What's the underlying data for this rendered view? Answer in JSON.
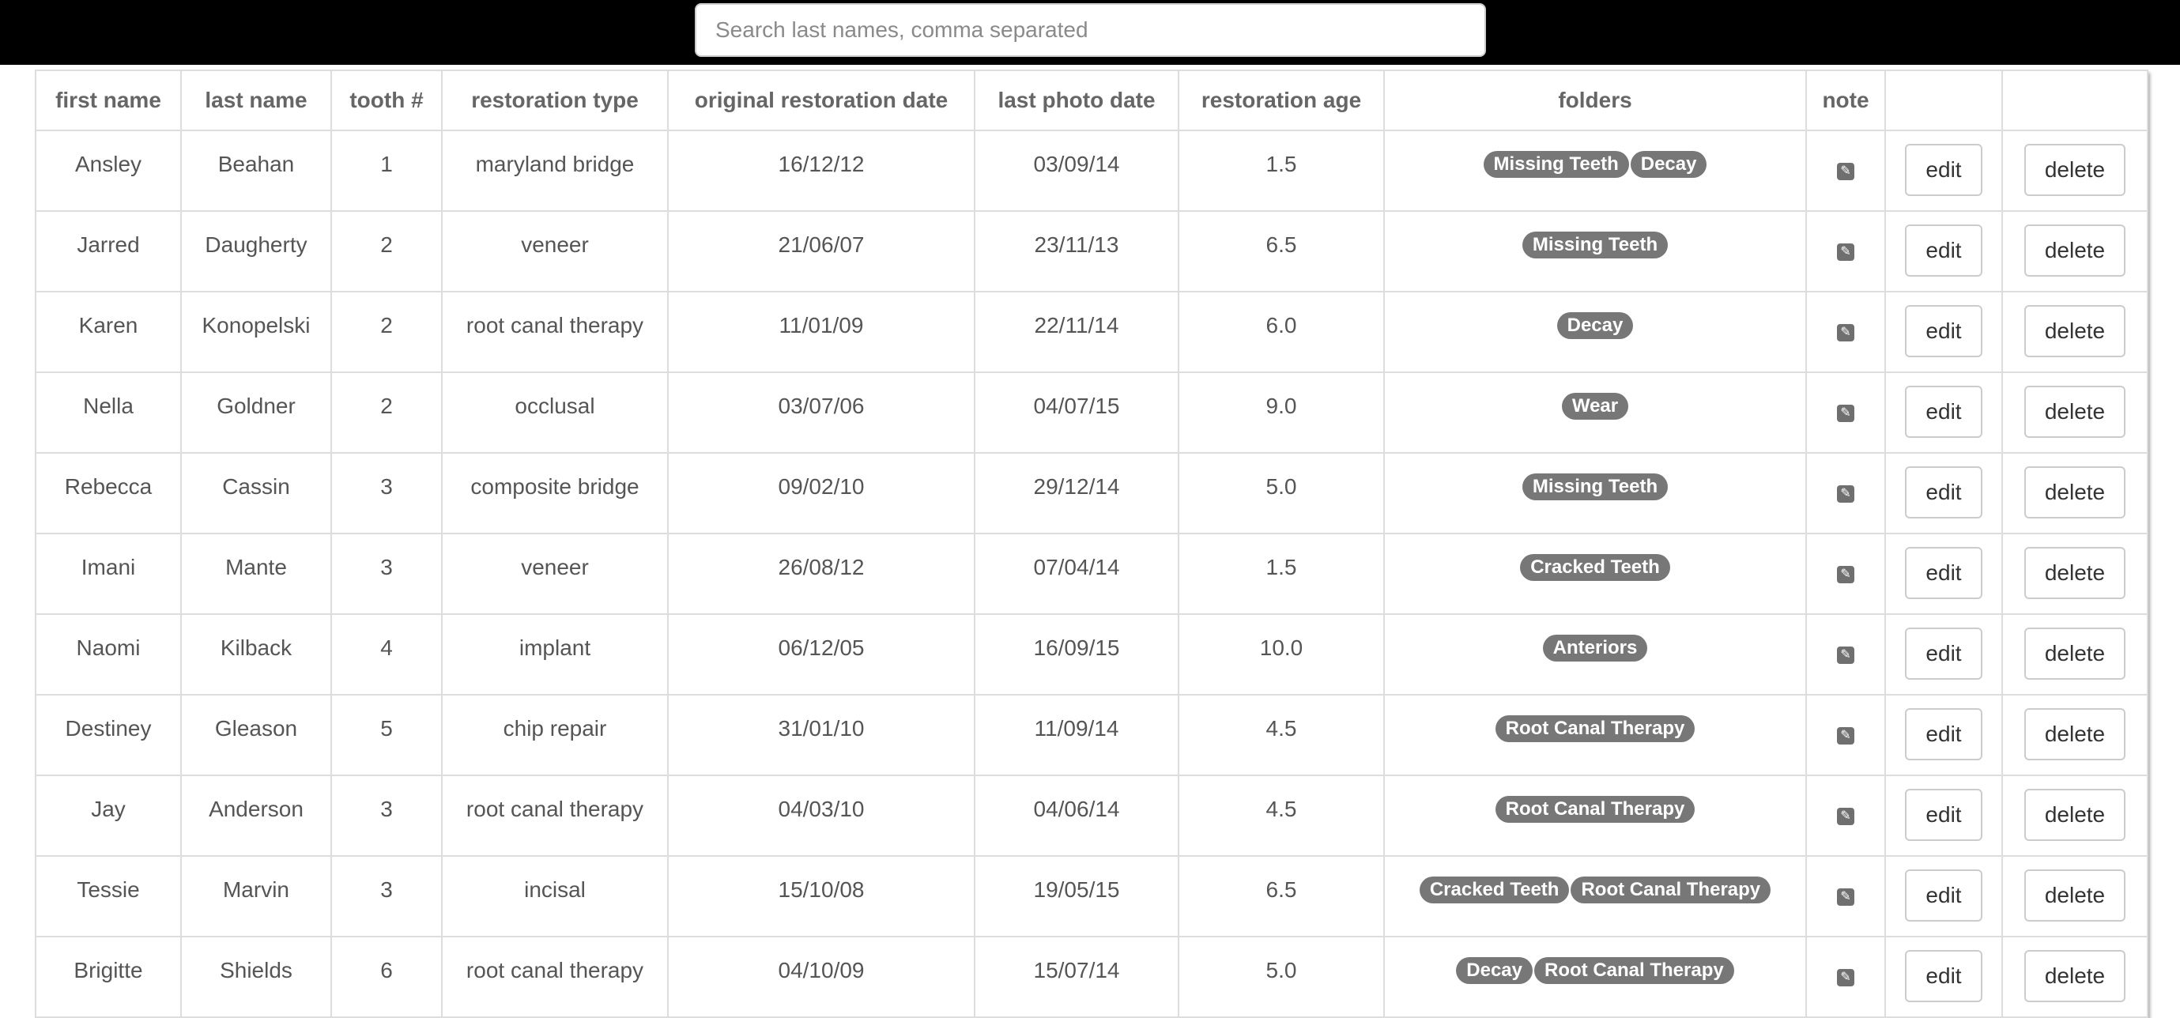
{
  "search": {
    "placeholder": "Search last names, comma separated"
  },
  "table": {
    "headers": [
      "first name",
      "last name",
      "tooth #",
      "restoration type",
      "original restoration date",
      "last photo date",
      "restoration age",
      "folders",
      "note",
      "",
      ""
    ],
    "edit_label": "edit",
    "delete_label": "delete",
    "note_icon": "pencil-square-icon",
    "rows": [
      {
        "first": "Ansley",
        "last": "Beahan",
        "tooth": "1",
        "type": "maryland bridge",
        "orig": "16/12/12",
        "photo": "03/09/14",
        "age": "1.5",
        "folders": [
          "Missing Teeth",
          "Decay"
        ]
      },
      {
        "first": "Jarred",
        "last": "Daugherty",
        "tooth": "2",
        "type": "veneer",
        "orig": "21/06/07",
        "photo": "23/11/13",
        "age": "6.5",
        "folders": [
          "Missing Teeth"
        ]
      },
      {
        "first": "Karen",
        "last": "Konopelski",
        "tooth": "2",
        "type": "root canal therapy",
        "orig": "11/01/09",
        "photo": "22/11/14",
        "age": "6.0",
        "folders": [
          "Decay"
        ]
      },
      {
        "first": "Nella",
        "last": "Goldner",
        "tooth": "2",
        "type": "occlusal",
        "orig": "03/07/06",
        "photo": "04/07/15",
        "age": "9.0",
        "folders": [
          "Wear"
        ]
      },
      {
        "first": "Rebecca",
        "last": "Cassin",
        "tooth": "3",
        "type": "composite bridge",
        "orig": "09/02/10",
        "photo": "29/12/14",
        "age": "5.0",
        "folders": [
          "Missing Teeth"
        ]
      },
      {
        "first": "Imani",
        "last": "Mante",
        "tooth": "3",
        "type": "veneer",
        "orig": "26/08/12",
        "photo": "07/04/14",
        "age": "1.5",
        "folders": [
          "Cracked Teeth"
        ]
      },
      {
        "first": "Naomi",
        "last": "Kilback",
        "tooth": "4",
        "type": "implant",
        "orig": "06/12/05",
        "photo": "16/09/15",
        "age": "10.0",
        "folders": [
          "Anteriors"
        ]
      },
      {
        "first": "Destiney",
        "last": "Gleason",
        "tooth": "5",
        "type": "chip repair",
        "orig": "31/01/10",
        "photo": "11/09/14",
        "age": "4.5",
        "folders": [
          "Root Canal Therapy"
        ]
      },
      {
        "first": "Jay",
        "last": "Anderson",
        "tooth": "3",
        "type": "root canal therapy",
        "orig": "04/03/10",
        "photo": "04/06/14",
        "age": "4.5",
        "folders": [
          "Root Canal Therapy"
        ]
      },
      {
        "first": "Tessie",
        "last": "Marvin",
        "tooth": "3",
        "type": "incisal",
        "orig": "15/10/08",
        "photo": "19/05/15",
        "age": "6.5",
        "folders": [
          "Cracked Teeth",
          "Root Canal Therapy"
        ]
      },
      {
        "first": "Brigitte",
        "last": "Shields",
        "tooth": "6",
        "type": "root canal therapy",
        "orig": "04/10/09",
        "photo": "15/07/14",
        "age": "5.0",
        "folders": [
          "Decay",
          "Root Canal Therapy"
        ]
      }
    ]
  }
}
